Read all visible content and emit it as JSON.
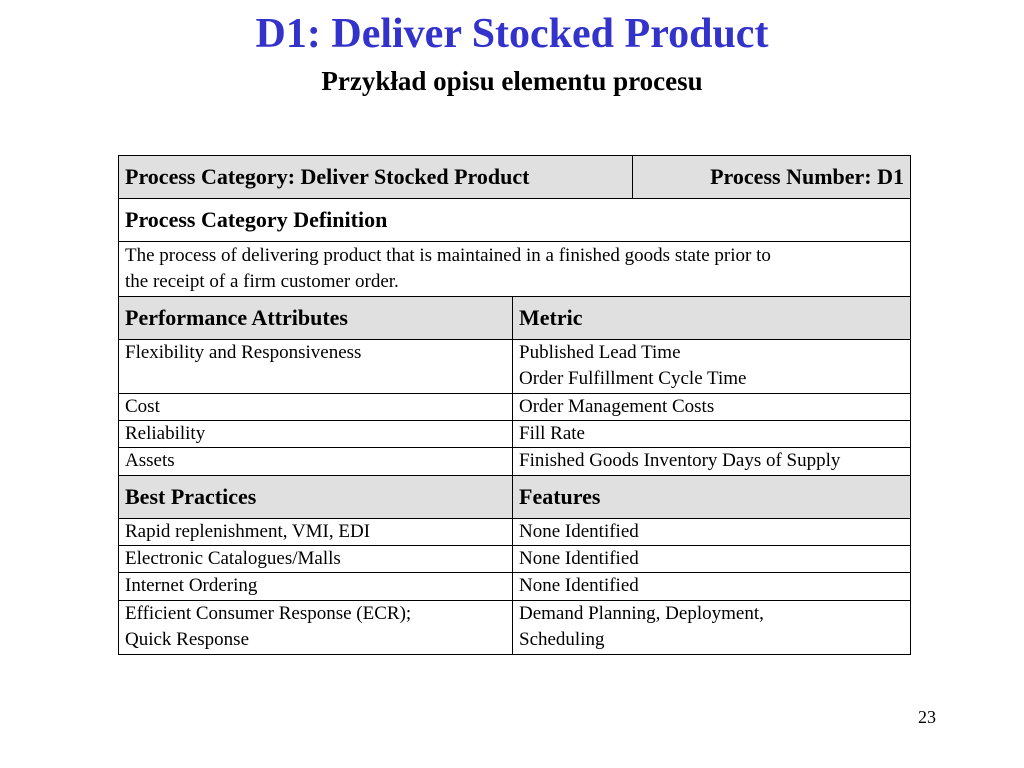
{
  "slide": {
    "title": "D1: Deliver Stocked Product",
    "subtitle": "Przykład opisu elementu procesu",
    "page_number": "23"
  },
  "table": {
    "category_label": "Process Category: Deliver Stocked Product",
    "number_label": "Process Number: D1",
    "definition_header": "Process Category Definition",
    "definition_line1": "The process of delivering product that is maintained in a finished goods state prior to",
    "definition_line2": "the receipt of a firm customer order.",
    "performance_header": "Performance Attributes",
    "metric_header": "Metric",
    "performance_rows": [
      {
        "attribute": "Flexibility and Responsiveness",
        "metric_lines": [
          "Published Lead Time",
          "Order Fulfillment Cycle Time"
        ]
      },
      {
        "attribute": "Cost",
        "metric_lines": [
          "Order Management Costs"
        ]
      },
      {
        "attribute": "Reliability",
        "metric_lines": [
          "Fill Rate"
        ]
      },
      {
        "attribute": "Assets",
        "metric_lines": [
          "Finished Goods Inventory Days of Supply"
        ]
      }
    ],
    "practices_header": "Best Practices",
    "features_header": "Features",
    "practice_rows": [
      {
        "practice_lines": [
          "Rapid replenishment, VMI, EDI"
        ],
        "feature_lines": [
          "None Identified"
        ]
      },
      {
        "practice_lines": [
          "Electronic Catalogues/Malls"
        ],
        "feature_lines": [
          "None Identified"
        ]
      },
      {
        "practice_lines": [
          "Internet Ordering"
        ],
        "feature_lines": [
          "None Identified"
        ]
      },
      {
        "practice_lines": [
          "Efficient Consumer Response (ECR);",
          "Quick Response"
        ],
        "feature_lines": [
          "Demand Planning, Deployment,",
          "Scheduling"
        ]
      }
    ]
  },
  "colors": {
    "title": "#3333cc",
    "header_fill": "#e0e0e0"
  }
}
